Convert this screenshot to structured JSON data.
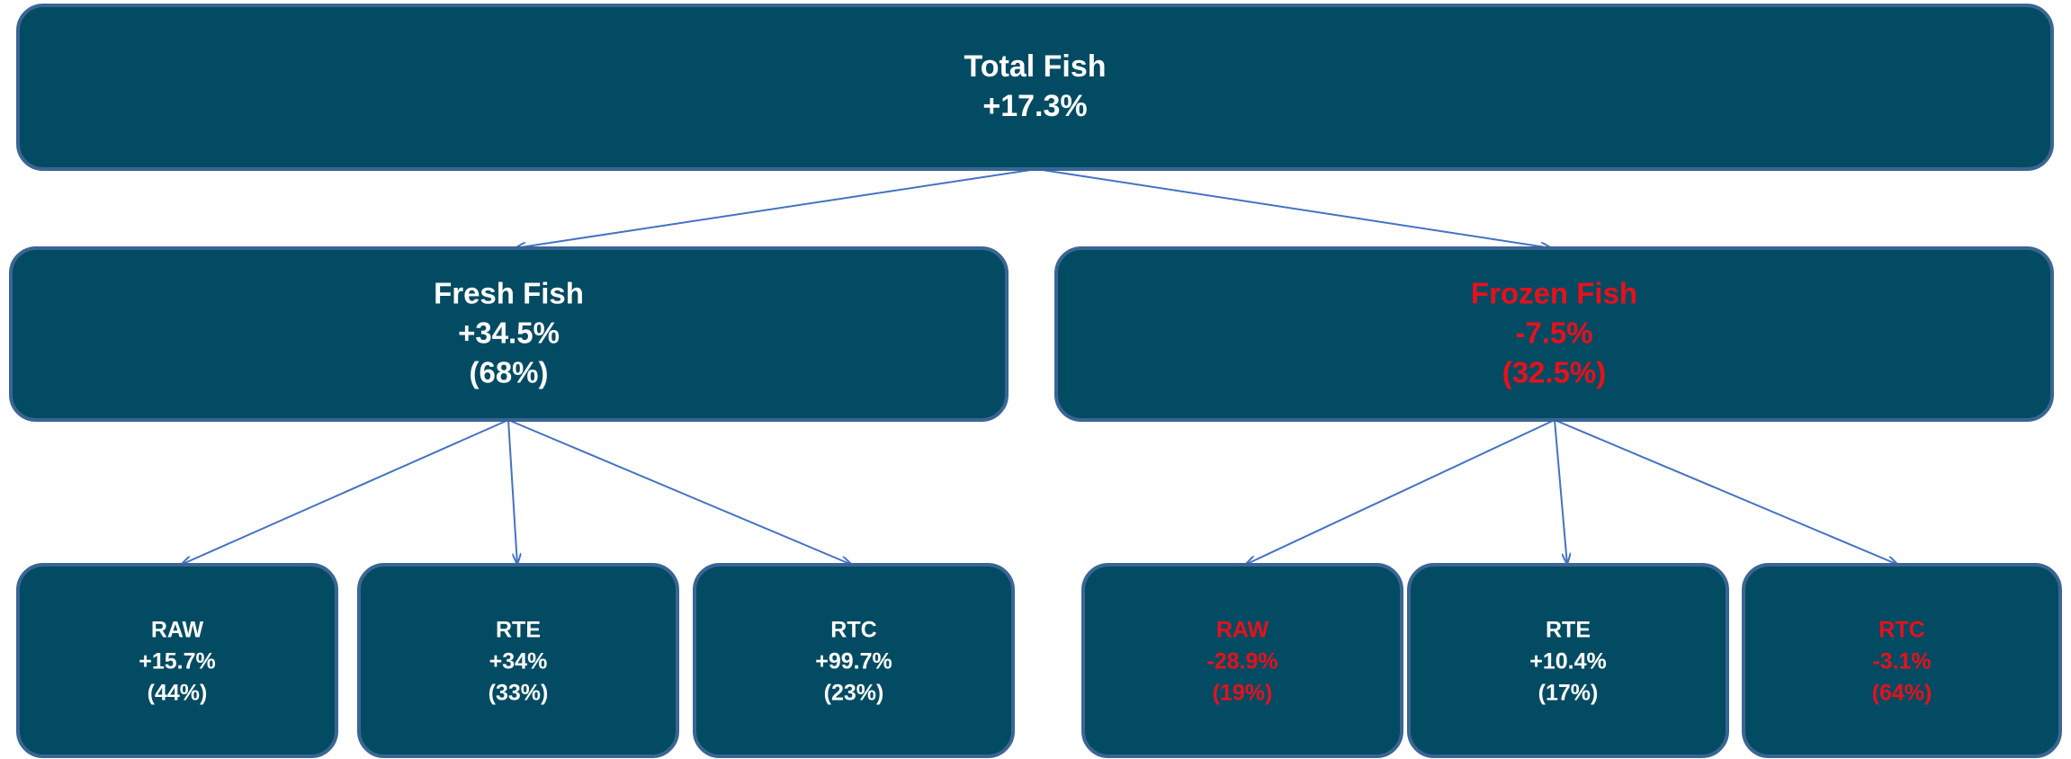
{
  "nodes": [
    {
      "label": "Total Fish",
      "change": "+17.3%",
      "color": "#ffffff"
    },
    {
      "label": "Fresh Fish",
      "change": "+34.5%",
      "share": "(68%)",
      "color": "#ffffff"
    },
    {
      "label": "Frozen Fish",
      "change": "-7.5%",
      "share": "(32.5%)",
      "color": "#e8101a"
    },
    {
      "label": "RAW",
      "change": "+15.7%",
      "share": "(44%)",
      "color": "#ffffff"
    },
    {
      "label": "RTE",
      "change": "+34%",
      "share": "(33%)",
      "color": "#ffffff"
    },
    {
      "label": "RTC",
      "change": "+99.7%",
      "share": "(23%)",
      "color": "#ffffff"
    },
    {
      "label": "RAW",
      "change": "-28.9%",
      "share": "(19%)",
      "color": "#e8101a"
    },
    {
      "label": "RTE",
      "change": "+10.4%",
      "share": "(17%)",
      "color": "#ffffff"
    },
    {
      "label": "RTC",
      "change": "-3.1%",
      "share": "(64%)",
      "color": "#e8101a"
    }
  ]
}
